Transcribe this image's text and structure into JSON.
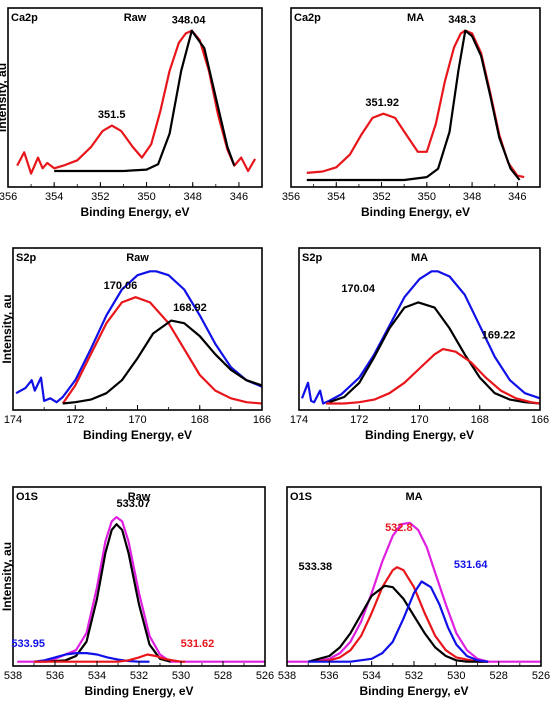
{
  "chart_data": [
    {
      "type": "line",
      "element": "Ca2p",
      "title": "Raw",
      "xlabel": "Binding Energy, eV",
      "ylabel": "Intensity, au",
      "xlim": [
        356,
        345
      ],
      "xticks": [
        "356",
        "354",
        "352",
        "350",
        "348",
        "346"
      ],
      "series": [
        {
          "color": "#e8161b",
          "x": [
            355.6,
            355.3,
            355.0,
            354.7,
            354.5,
            354.3,
            354.0,
            353.6,
            353.0,
            352.4,
            351.9,
            351.5,
            351.1,
            350.6,
            350.2,
            349.8,
            349.4,
            349.0,
            348.6,
            348.3,
            348.04,
            347.7,
            347.3,
            346.9,
            346.5,
            346.2,
            345.9,
            345.6,
            345.3
          ],
          "y": [
            0.04,
            0.14,
            -0.02,
            0.1,
            0.02,
            0.06,
            0.02,
            0.04,
            0.08,
            0.18,
            0.3,
            0.34,
            0.3,
            0.18,
            0.1,
            0.2,
            0.45,
            0.75,
            0.96,
            1.03,
            1.05,
            0.98,
            0.75,
            0.42,
            0.16,
            0.04,
            0.1,
            0.0,
            0.09
          ]
        },
        {
          "color": "#000000",
          "x": [
            354.0,
            353.0,
            352.0,
            351.0,
            350.0,
            349.5,
            349.0,
            348.5,
            348.04,
            347.5,
            347.0,
            346.5,
            346.2
          ],
          "y": [
            0.0,
            0.0,
            0.0,
            0.0,
            0.01,
            0.05,
            0.28,
            0.75,
            1.05,
            0.92,
            0.55,
            0.18,
            0.04
          ]
        }
      ],
      "annotations": [
        {
          "text": "351.5",
          "x": 351.5,
          "y": 0.38
        },
        {
          "text": "348.04",
          "x": 348.04,
          "y": 1.09
        }
      ]
    },
    {
      "type": "line",
      "element": "Ca2p",
      "title": "MA",
      "xlabel": "Binding Energy, eV",
      "ylabel": "",
      "xlim": [
        356,
        345
      ],
      "xticks": [
        "356",
        "354",
        "352",
        "350",
        "348",
        "346"
      ],
      "series": [
        {
          "color": "#e8161b",
          "x": [
            355.3,
            354.6,
            354.0,
            353.4,
            352.9,
            352.4,
            351.92,
            351.4,
            350.9,
            350.4,
            350.0,
            349.6,
            349.2,
            348.8,
            348.5,
            348.3,
            348.0,
            347.6,
            347.2,
            346.8,
            346.4,
            346.0,
            345.7
          ],
          "y": [
            0.05,
            0.06,
            0.09,
            0.18,
            0.32,
            0.44,
            0.47,
            0.44,
            0.32,
            0.2,
            0.2,
            0.4,
            0.7,
            0.94,
            1.04,
            1.06,
            1.04,
            0.9,
            0.62,
            0.32,
            0.12,
            0.03,
            0.02
          ]
        },
        {
          "color": "#000000",
          "x": [
            355.3,
            354.0,
            353.0,
            352.0,
            351.0,
            350.0,
            349.5,
            349.0,
            348.6,
            348.3,
            348.0,
            347.6,
            347.2,
            346.8,
            346.3,
            345.9
          ],
          "y": [
            0.0,
            0.0,
            0.0,
            0.0,
            0.0,
            0.02,
            0.08,
            0.34,
            0.78,
            1.06,
            1.02,
            0.88,
            0.6,
            0.3,
            0.08,
            0.0
          ]
        }
      ],
      "annotations": [
        {
          "text": "351.92",
          "x": 351.92,
          "y": 0.51
        },
        {
          "text": "348.3",
          "x": 348.3,
          "y": 1.1
        }
      ]
    },
    {
      "type": "line",
      "element": "S2p",
      "title": "Raw",
      "xlabel": "Binding Energy, eV",
      "ylabel": "Intensity, au",
      "xlim": [
        174,
        166
      ],
      "xticks": [
        "174",
        "172",
        "170",
        "168",
        "166"
      ],
      "series": [
        {
          "color": "#1010e8",
          "x": [
            173.9,
            173.6,
            173.4,
            173.3,
            173.1,
            173.0,
            172.8,
            172.6,
            172.4,
            172.0,
            171.5,
            171.0,
            170.5,
            170.0,
            169.6,
            169.4,
            169.0,
            168.5,
            168.0,
            167.5,
            167.0,
            166.5,
            166.0
          ],
          "y": [
            0.08,
            0.12,
            0.18,
            0.1,
            0.2,
            0.02,
            0.04,
            0.01,
            0.05,
            0.18,
            0.42,
            0.68,
            0.88,
            0.99,
            1.02,
            1.02,
            0.99,
            0.88,
            0.68,
            0.46,
            0.28,
            0.18,
            0.13
          ]
        },
        {
          "color": "#e8161b",
          "x": [
            172.4,
            172.0,
            171.5,
            171.0,
            170.5,
            170.06,
            169.6,
            169.0,
            168.5,
            168.0,
            167.5,
            167.0,
            166.5,
            166.0
          ],
          "y": [
            0.0,
            0.14,
            0.38,
            0.62,
            0.78,
            0.82,
            0.78,
            0.62,
            0.42,
            0.22,
            0.1,
            0.04,
            0.01,
            0.0
          ]
        },
        {
          "color": "#000000",
          "x": [
            172.4,
            172.0,
            171.5,
            171.0,
            170.5,
            170.0,
            169.5,
            168.92,
            168.5,
            168.0,
            167.5,
            167.0,
            166.5,
            166.0
          ],
          "y": [
            0.0,
            0.01,
            0.03,
            0.08,
            0.18,
            0.35,
            0.54,
            0.64,
            0.62,
            0.52,
            0.38,
            0.26,
            0.18,
            0.14
          ]
        }
      ],
      "annotations": [
        {
          "text": "170.06",
          "x": 170.06,
          "y": 0.86
        },
        {
          "text": "168.92",
          "x": 168.92,
          "y": 0.69
        }
      ]
    },
    {
      "type": "line",
      "element": "S2p",
      "title": "MA",
      "xlabel": "Binding Energy, eV",
      "ylabel": "",
      "xlim": [
        174,
        166
      ],
      "xticks": [
        "174",
        "172",
        "170",
        "168",
        "166"
      ],
      "series": [
        {
          "color": "#1010e8",
          "x": [
            173.9,
            173.7,
            173.6,
            173.5,
            173.3,
            173.2,
            173.0,
            172.6,
            172.0,
            171.5,
            171.0,
            170.5,
            170.0,
            169.6,
            169.4,
            169.0,
            168.5,
            168.0,
            167.5,
            167.0,
            166.5,
            166.0
          ],
          "y": [
            0.04,
            0.16,
            0.02,
            0.01,
            0.1,
            0.0,
            0.02,
            0.07,
            0.2,
            0.38,
            0.6,
            0.82,
            0.96,
            1.02,
            1.02,
            0.98,
            0.84,
            0.6,
            0.36,
            0.18,
            0.08,
            0.04
          ]
        },
        {
          "color": "#000000",
          "x": [
            173.0,
            172.5,
            172.0,
            171.5,
            171.0,
            170.5,
            170.04,
            169.5,
            169.0,
            168.5,
            168.0,
            167.5,
            167.0,
            166.5,
            166.0
          ],
          "y": [
            0.01,
            0.05,
            0.16,
            0.36,
            0.58,
            0.74,
            0.78,
            0.74,
            0.58,
            0.38,
            0.2,
            0.08,
            0.03,
            0.01,
            0.0
          ]
        },
        {
          "color": "#e8161b",
          "x": [
            173.1,
            172.5,
            172.0,
            171.5,
            171.0,
            170.5,
            170.0,
            169.5,
            169.22,
            168.8,
            168.3,
            167.8,
            167.3,
            166.8,
            166.3,
            166.0
          ],
          "y": [
            0.0,
            0.0,
            0.01,
            0.03,
            0.08,
            0.16,
            0.27,
            0.38,
            0.42,
            0.4,
            0.32,
            0.2,
            0.1,
            0.04,
            0.01,
            0.0
          ]
        }
      ],
      "annotations": [
        {
          "text": "170.04",
          "x": 171.2,
          "y": 0.86
        },
        {
          "text": "169.22",
          "x": 168.0,
          "y": 0.5
        }
      ]
    },
    {
      "type": "line",
      "element": "O1S",
      "title": "Raw",
      "xlabel": "Binding Energy, eV",
      "ylabel": "Intensity, au",
      "xlim": [
        538,
        526
      ],
      "xticks": [
        "538",
        "536",
        "534",
        "532",
        "530",
        "528",
        "526"
      ],
      "series": [
        {
          "color": "#e020e0",
          "x": [
            537.8,
            536.5,
            536.0,
            535.0,
            534.5,
            534.0,
            533.6,
            533.3,
            533.07,
            532.8,
            532.5,
            532.0,
            531.5,
            531.0,
            530.5,
            530.0,
            529.0,
            528.0,
            527.0,
            526.0
          ],
          "y": [
            0.0,
            0.0,
            0.02,
            0.08,
            0.2,
            0.52,
            0.84,
            0.98,
            1.01,
            0.98,
            0.84,
            0.48,
            0.18,
            0.05,
            0.0,
            0.0,
            0.0,
            0.0,
            0.0,
            0.0
          ]
        },
        {
          "color": "#000000",
          "x": [
            536.5,
            535.5,
            535.0,
            534.5,
            534.0,
            533.6,
            533.3,
            533.07,
            532.8,
            532.5,
            532.0,
            531.5,
            531.0,
            530.5
          ],
          "y": [
            0.0,
            0.01,
            0.04,
            0.14,
            0.44,
            0.76,
            0.92,
            0.96,
            0.92,
            0.76,
            0.4,
            0.12,
            0.02,
            0.0
          ]
        },
        {
          "color": "#1010e8",
          "x": [
            537.0,
            536.5,
            536.0,
            535.5,
            535.0,
            534.5,
            534.0,
            533.5,
            533.0,
            532.5,
            532.0,
            531.5
          ],
          "y": [
            0.0,
            0.01,
            0.03,
            0.05,
            0.06,
            0.06,
            0.05,
            0.03,
            0.015,
            0.005,
            0.0,
            0.0
          ]
        },
        {
          "color": "#e8161b",
          "x": [
            537.0,
            533.0,
            532.5,
            532.0,
            531.6,
            531.2,
            530.8,
            530.4,
            530.0,
            529.8
          ],
          "y": [
            0.0,
            0.0,
            0.01,
            0.03,
            0.05,
            0.04,
            0.02,
            0.01,
            0.0,
            0.0
          ]
        }
      ],
      "annotations": [
        {
          "text": "533.07",
          "x": 532.5,
          "y": 1.06
        },
        {
          "text": "533.95",
          "x": 535.6,
          "y": 0.13
        },
        {
          "text": "531.62",
          "x": 530.4,
          "y": 0.13
        }
      ]
    },
    {
      "type": "line",
      "element": "O1S",
      "title": "MA",
      "xlabel": "Binding Energy, eV",
      "ylabel": "",
      "xlim": [
        538,
        526
      ],
      "xticks": [
        "538",
        "536",
        "534",
        "532",
        "530",
        "528",
        "526"
      ],
      "series": [
        {
          "color": "#e020e0",
          "x": [
            538.0,
            537.0,
            536.0,
            535.5,
            535.0,
            534.5,
            534.0,
            533.5,
            533.0,
            532.6,
            532.2,
            531.8,
            531.4,
            531.0,
            530.5,
            530.0,
            529.5,
            529.0,
            528.5,
            527.5,
            526.0
          ],
          "y": [
            0.0,
            0.0,
            0.02,
            0.06,
            0.14,
            0.28,
            0.48,
            0.7,
            0.88,
            0.96,
            0.97,
            0.92,
            0.8,
            0.62,
            0.4,
            0.2,
            0.08,
            0.02,
            0.0,
            0.0,
            0.0
          ]
        },
        {
          "color": "#e8161b",
          "x": [
            537.0,
            536.0,
            535.5,
            535.0,
            534.5,
            534.0,
            533.5,
            533.0,
            532.8,
            532.5,
            532.0,
            531.5,
            531.0,
            530.5,
            530.0,
            529.0,
            528.5
          ],
          "y": [
            0.0,
            0.01,
            0.03,
            0.08,
            0.18,
            0.34,
            0.52,
            0.64,
            0.66,
            0.64,
            0.52,
            0.34,
            0.18,
            0.08,
            0.03,
            0.0,
            0.0
          ]
        },
        {
          "color": "#000000",
          "x": [
            537.0,
            536.0,
            535.5,
            535.0,
            534.5,
            534.0,
            533.38,
            533.0,
            532.5,
            532.0,
            531.5,
            531.0,
            530.5,
            530.0,
            529.5,
            528.5
          ],
          "y": [
            0.0,
            0.04,
            0.1,
            0.2,
            0.33,
            0.46,
            0.53,
            0.52,
            0.44,
            0.32,
            0.2,
            0.1,
            0.04,
            0.01,
            0.0,
            0.0
          ]
        },
        {
          "color": "#1010e8",
          "x": [
            537.0,
            535.0,
            534.0,
            533.5,
            533.0,
            532.5,
            532.0,
            531.64,
            531.2,
            530.8,
            530.4,
            530.0,
            529.5,
            529.0,
            528.5
          ],
          "y": [
            0.0,
            0.0,
            0.02,
            0.06,
            0.14,
            0.3,
            0.48,
            0.56,
            0.52,
            0.4,
            0.24,
            0.12,
            0.04,
            0.01,
            0.0
          ]
        }
      ],
      "annotations": [
        {
          "text": "533.38",
          "x": 535.0,
          "y": 0.64
        },
        {
          "text": "532.8",
          "x": 532.8,
          "y": 0.9
        },
        {
          "text": "531.64",
          "x": 530.4,
          "y": 0.64
        }
      ]
    }
  ]
}
